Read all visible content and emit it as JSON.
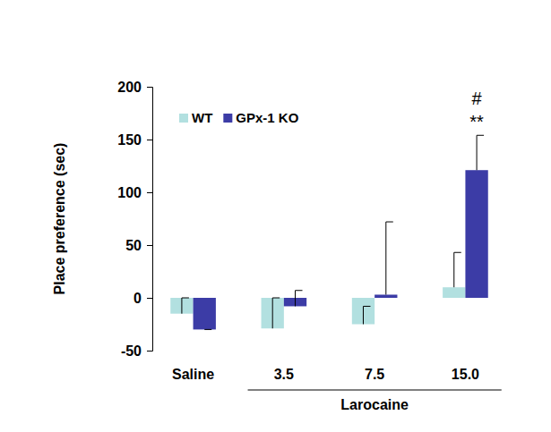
{
  "chart_data": {
    "type": "bar",
    "y_label": "Place preference (sec)",
    "categories": [
      "Saline",
      "3.5",
      "7.5",
      "15.0"
    ],
    "series": [
      {
        "name": "WT",
        "color": "#b2e0e0",
        "values": [
          -15,
          -29,
          -25,
          10
        ],
        "errors": [
          15,
          29,
          17,
          33
        ]
      },
      {
        "name": "GPx-1 KO",
        "color": "#3c3ca6",
        "values": [
          -30,
          -8,
          3,
          121
        ],
        "errors": [
          0,
          15,
          69,
          33
        ]
      }
    ],
    "x_group": {
      "label": "Larocaine",
      "categories": [
        "3.5",
        "7.5",
        "15.0"
      ]
    },
    "annotations": [
      {
        "text": "#",
        "series": "GPx-1 KO",
        "category": "15.0"
      },
      {
        "text": "**",
        "series": "GPx-1 KO",
        "category": "15.0"
      }
    ],
    "ylim": [
      -50,
      200
    ],
    "yticks": [
      -50,
      0,
      50,
      100,
      150,
      200
    ],
    "legend": "upper left",
    "grid": false
  }
}
